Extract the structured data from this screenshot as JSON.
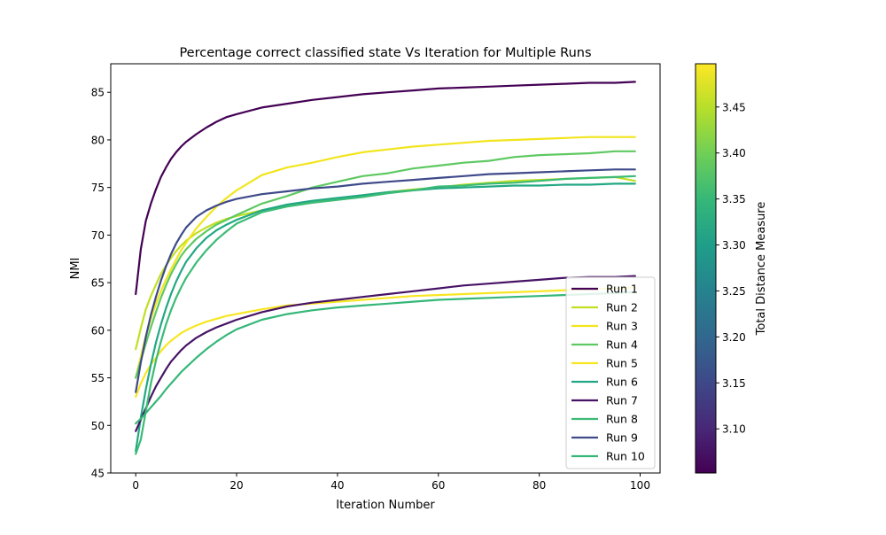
{
  "chart_data": {
    "type": "line",
    "title": "Percentage correct classified state Vs Iteration for Multiple Runs",
    "xlabel": "Iteration Number",
    "ylabel": "NMI",
    "xlim": [
      -4.95,
      103.95
    ],
    "ylim": [
      45,
      88
    ],
    "x_ticks": [
      0,
      20,
      40,
      60,
      80,
      100
    ],
    "y_ticks": [
      45,
      50,
      55,
      60,
      65,
      70,
      75,
      80,
      85
    ],
    "grid": false,
    "legend_position": "lower-right",
    "x_sample_points": [
      0,
      1,
      2,
      3,
      4,
      5,
      6,
      7,
      8,
      9,
      10,
      12,
      14,
      16,
      18,
      20,
      25,
      30,
      35,
      40,
      45,
      50,
      55,
      60,
      65,
      70,
      75,
      80,
      85,
      90,
      95,
      99
    ],
    "series": [
      {
        "name": "Run 1",
        "color": "#440154",
        "metric": 3.05,
        "values": [
          63.8,
          68.5,
          71.5,
          73.3,
          74.8,
          76.1,
          77.1,
          78.0,
          78.7,
          79.3,
          79.8,
          80.6,
          81.3,
          81.9,
          82.4,
          82.7,
          83.4,
          83.8,
          84.2,
          84.5,
          84.8,
          85.0,
          85.2,
          85.4,
          85.5,
          85.6,
          85.7,
          85.8,
          85.9,
          86.0,
          86.0,
          86.1
        ]
      },
      {
        "name": "Run 2",
        "color": "#c2df23",
        "metric": 3.45,
        "values": [
          58.0,
          60.2,
          62.2,
          63.6,
          64.8,
          65.9,
          66.8,
          67.6,
          68.3,
          68.9,
          69.4,
          70.2,
          70.8,
          71.3,
          71.7,
          72.0,
          72.6,
          73.1,
          73.5,
          73.8,
          74.2,
          74.5,
          74.8,
          75.0,
          75.3,
          75.5,
          75.7,
          75.8,
          75.9,
          76.0,
          76.1,
          75.7
        ]
      },
      {
        "name": "Run 3",
        "color": "#f2e51d",
        "metric": 3.48,
        "values": [
          55.0,
          57.2,
          59.4,
          61.2,
          62.8,
          64.1,
          65.3,
          66.4,
          67.4,
          68.4,
          69.2,
          70.7,
          71.9,
          73.0,
          73.9,
          74.7,
          76.3,
          77.1,
          77.6,
          78.2,
          78.7,
          79.0,
          79.3,
          79.5,
          79.7,
          79.9,
          80.0,
          80.1,
          80.2,
          80.3,
          80.3,
          80.3
        ]
      },
      {
        "name": "Run 4",
        "color": "#5ec962",
        "metric": 3.4,
        "values": [
          55.0,
          56.8,
          58.6,
          60.3,
          61.9,
          63.4,
          64.7,
          65.9,
          66.9,
          67.8,
          68.5,
          69.6,
          70.4,
          71.1,
          71.6,
          72.1,
          73.3,
          74.1,
          75.0,
          75.6,
          76.2,
          76.5,
          77.0,
          77.3,
          77.6,
          77.8,
          78.2,
          78.4,
          78.5,
          78.6,
          78.8,
          78.8
        ]
      },
      {
        "name": "Run 5",
        "color": "#f8e621",
        "metric": 3.49,
        "values": [
          53.0,
          54.4,
          55.5,
          56.4,
          57.1,
          57.8,
          58.4,
          58.9,
          59.3,
          59.7,
          60.0,
          60.5,
          60.9,
          61.2,
          61.5,
          61.7,
          62.2,
          62.6,
          62.8,
          63.0,
          63.2,
          63.4,
          63.6,
          63.7,
          63.8,
          63.9,
          64.0,
          64.1,
          64.2,
          64.3,
          64.4,
          64.5
        ]
      },
      {
        "name": "Run 6",
        "color": "#22a884",
        "metric": 3.32,
        "values": [
          47.3,
          50.8,
          53.8,
          56.4,
          58.7,
          60.6,
          62.3,
          63.8,
          65.1,
          66.2,
          67.2,
          68.6,
          69.7,
          70.5,
          71.1,
          71.6,
          72.6,
          73.2,
          73.6,
          73.9,
          74.2,
          74.5,
          74.7,
          74.9,
          75.0,
          75.1,
          75.2,
          75.2,
          75.3,
          75.3,
          75.4,
          75.4
        ]
      },
      {
        "name": "Run 7",
        "color": "#471365",
        "metric": 3.07,
        "values": [
          49.4,
          50.6,
          51.8,
          53.0,
          54.1,
          55.0,
          55.9,
          56.7,
          57.3,
          57.9,
          58.4,
          59.2,
          59.8,
          60.3,
          60.7,
          61.1,
          61.9,
          62.5,
          62.9,
          63.2,
          63.5,
          63.8,
          64.1,
          64.4,
          64.7,
          64.9,
          65.1,
          65.3,
          65.5,
          65.6,
          65.6,
          65.7
        ]
      },
      {
        "name": "Run 8",
        "color": "#3bbb75",
        "metric": 3.37,
        "values": [
          47.0,
          48.5,
          51.5,
          54.4,
          56.8,
          58.8,
          60.6,
          62.1,
          63.4,
          64.5,
          65.5,
          67.1,
          68.4,
          69.5,
          70.4,
          71.2,
          72.4,
          73.0,
          73.4,
          73.7,
          74.0,
          74.4,
          74.7,
          75.1,
          75.2,
          75.4,
          75.5,
          75.7,
          75.9,
          76.0,
          76.1,
          76.2
        ]
      },
      {
        "name": "Run 9",
        "color": "#3e4a89",
        "metric": 3.12,
        "values": [
          53.5,
          56.6,
          59.3,
          61.6,
          63.5,
          65.2,
          66.7,
          68.0,
          69.1,
          70.0,
          70.8,
          71.9,
          72.6,
          73.1,
          73.5,
          73.8,
          74.3,
          74.6,
          74.9,
          75.1,
          75.4,
          75.6,
          75.8,
          76.0,
          76.2,
          76.4,
          76.5,
          76.6,
          76.7,
          76.8,
          76.9,
          76.9
        ]
      },
      {
        "name": "Run 10",
        "color": "#35b779",
        "metric": 3.36,
        "values": [
          50.2,
          50.7,
          51.3,
          51.9,
          52.5,
          53.1,
          53.8,
          54.4,
          55.0,
          55.6,
          56.1,
          57.1,
          58.0,
          58.8,
          59.5,
          60.1,
          61.1,
          61.7,
          62.1,
          62.4,
          62.6,
          62.8,
          63.0,
          63.2,
          63.3,
          63.4,
          63.5,
          63.6,
          63.7,
          63.8,
          63.9,
          64.0
        ]
      }
    ],
    "colorbar": {
      "label": "Total Distance Measure",
      "min": 3.052,
      "max": 3.497,
      "ticks": [
        "3.10",
        "3.15",
        "3.20",
        "3.25",
        "3.30",
        "3.35",
        "3.40",
        "3.45"
      ],
      "colormap": "viridis",
      "stops": [
        "#440154",
        "#482878",
        "#3e4989",
        "#31688e",
        "#26828e",
        "#1f9e89",
        "#35b779",
        "#6ece58",
        "#b5de2b",
        "#fde725"
      ]
    }
  }
}
